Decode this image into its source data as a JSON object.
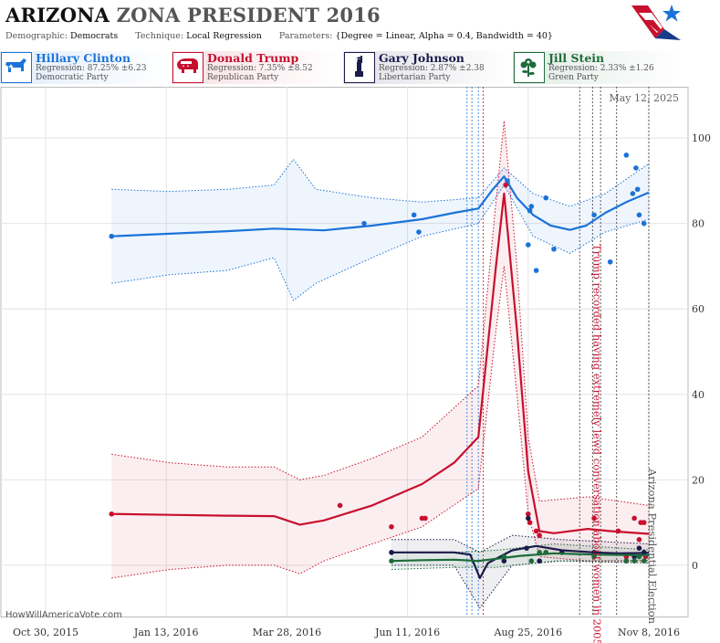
{
  "header": {
    "state": "ARIZONA",
    "title_rest": "ZONA PRESIDENT 2016",
    "demographic_label": "Demographic:",
    "demographic_value": "Democrats",
    "technique_label": "Technique:",
    "technique_value": "Local Regression",
    "parameters_label": "Parameters:",
    "parameters_value": "{Degree = Linear, Alpha = 0.4, Bandwidth = 40}"
  },
  "candidates": [
    {
      "name": "Hillary Clinton",
      "regression": "Regression: 87.25% ±6.23",
      "party": "Democratic Party",
      "color": "#1a73d9",
      "icon": "donkey-icon"
    },
    {
      "name": "Donald Trump",
      "regression": "Regression: 7.35% ±8.52",
      "party": "Republican Party",
      "color": "#c8102e",
      "icon": "elephant-icon"
    },
    {
      "name": "Gary Johnson",
      "regression": "Regression: 2.87% ±2.38",
      "party": "Libertarian Party",
      "color": "#1b1a4a",
      "icon": "statue-of-liberty-icon"
    },
    {
      "name": "Jill Stein",
      "regression": "Regression: 2.33% ±1.26",
      "party": "Green Party",
      "color": "#1e6b3a",
      "icon": "flower-icon"
    }
  ],
  "credit": "HowWillAmericaVote.com",
  "chart_data": {
    "type": "line",
    "date_stamp": "May 12, 2025",
    "x_ticks": [
      "Oct 30, 2015",
      "Jan 13, 2016",
      "Mar 28, 2016",
      "Jun 11, 2016",
      "Aug 25, 2016",
      "Nov 8, 2016"
    ],
    "x_tick_dates": [
      "2015-10-30",
      "2016-01-13",
      "2016-03-28",
      "2016-06-11",
      "2016-08-25",
      "2016-11-08"
    ],
    "x_range": [
      "2015-10-30",
      "2016-11-08"
    ],
    "y_ticks": [
      0,
      20,
      40,
      60,
      80,
      100
    ],
    "ylim": [
      -12,
      112
    ],
    "grid": true,
    "annotations": [
      {
        "date": "2016-10-07",
        "text": "Trump recorded having extremely lewd conversation about women in 2005",
        "color": "#c8102e"
      },
      {
        "date": "2016-11-08",
        "text": "Arizona Presidential Election",
        "color": "#555555"
      }
    ],
    "event_lines": {
      "blue": [
        "2016-07-18",
        "2016-07-21",
        "2016-07-25"
      ],
      "red": [
        "2016-07-28"
      ],
      "dark": [
        "2016-09-26",
        "2016-10-04",
        "2016-10-09",
        "2016-10-19",
        "2016-11-08"
      ]
    },
    "series": [
      {
        "name": "Hillary Clinton",
        "color": "#1a73d9",
        "trend": [
          [
            "2015-12-10",
            77
          ],
          [
            "2016-01-15",
            77.6
          ],
          [
            "2016-02-20",
            78.2
          ],
          [
            "2016-03-20",
            78.8
          ],
          [
            "2016-04-20",
            78.4
          ],
          [
            "2016-05-20",
            79.5
          ],
          [
            "2016-06-20",
            81
          ],
          [
            "2016-07-10",
            82.5
          ],
          [
            "2016-07-25",
            83.5
          ],
          [
            "2016-08-03",
            88
          ],
          [
            "2016-08-10",
            91
          ],
          [
            "2016-08-18",
            86
          ],
          [
            "2016-08-28",
            82
          ],
          [
            "2016-09-08",
            79.5
          ],
          [
            "2016-09-20",
            78.5
          ],
          [
            "2016-09-30",
            79.5
          ],
          [
            "2016-10-12",
            82.5
          ],
          [
            "2016-10-25",
            85
          ],
          [
            "2016-11-08",
            87.25
          ]
        ],
        "upper": [
          [
            "2015-12-10",
            88
          ],
          [
            "2016-01-15",
            87.5
          ],
          [
            "2016-02-20",
            88
          ],
          [
            "2016-03-20",
            89
          ],
          [
            "2016-04-01",
            95
          ],
          [
            "2016-04-15",
            88
          ],
          [
            "2016-05-20",
            86
          ],
          [
            "2016-06-20",
            85
          ],
          [
            "2016-07-25",
            86
          ],
          [
            "2016-08-10",
            93
          ],
          [
            "2016-08-28",
            87
          ],
          [
            "2016-09-20",
            84
          ],
          [
            "2016-10-12",
            87
          ],
          [
            "2016-11-08",
            94
          ]
        ],
        "lower": [
          [
            "2015-12-10",
            66
          ],
          [
            "2016-01-15",
            68
          ],
          [
            "2016-02-20",
            69
          ],
          [
            "2016-03-20",
            72
          ],
          [
            "2016-04-01",
            62
          ],
          [
            "2016-04-15",
            66
          ],
          [
            "2016-05-20",
            72
          ],
          [
            "2016-06-20",
            77
          ],
          [
            "2016-07-25",
            80
          ],
          [
            "2016-08-10",
            89
          ],
          [
            "2016-08-28",
            77
          ],
          [
            "2016-09-20",
            73
          ],
          [
            "2016-10-12",
            78
          ],
          [
            "2016-11-08",
            81
          ]
        ],
        "points": [
          [
            "2015-12-10",
            77
          ],
          [
            "2016-05-15",
            80
          ],
          [
            "2016-06-15",
            82
          ],
          [
            "2016-06-18",
            78
          ],
          [
            "2016-08-12",
            90
          ],
          [
            "2016-08-25",
            75
          ],
          [
            "2016-08-26",
            83
          ],
          [
            "2016-08-27",
            84
          ],
          [
            "2016-08-30",
            69
          ],
          [
            "2016-09-05",
            86
          ],
          [
            "2016-09-10",
            74
          ],
          [
            "2016-10-05",
            82
          ],
          [
            "2016-10-15",
            71
          ],
          [
            "2016-10-25",
            96
          ],
          [
            "2016-10-29",
            87
          ],
          [
            "2016-10-31",
            93
          ],
          [
            "2016-11-01",
            88
          ],
          [
            "2016-11-02",
            82
          ],
          [
            "2016-11-05",
            80
          ]
        ]
      },
      {
        "name": "Donald Trump",
        "color": "#c8102e",
        "trend": [
          [
            "2015-12-10",
            12
          ],
          [
            "2016-01-15",
            11.8
          ],
          [
            "2016-02-20",
            11.6
          ],
          [
            "2016-03-20",
            11.5
          ],
          [
            "2016-04-05",
            9.5
          ],
          [
            "2016-04-20",
            10.5
          ],
          [
            "2016-05-20",
            14
          ],
          [
            "2016-06-20",
            19
          ],
          [
            "2016-07-10",
            24
          ],
          [
            "2016-07-25",
            30
          ],
          [
            "2016-08-05",
            70
          ],
          [
            "2016-08-10",
            87
          ],
          [
            "2016-08-18",
            55
          ],
          [
            "2016-08-25",
            22
          ],
          [
            "2016-09-01",
            8
          ],
          [
            "2016-09-10",
            7.5
          ],
          [
            "2016-10-01",
            8.5
          ],
          [
            "2016-10-15",
            8
          ],
          [
            "2016-11-08",
            7.35
          ]
        ],
        "upper": [
          [
            "2015-12-10",
            26
          ],
          [
            "2016-01-15",
            24
          ],
          [
            "2016-02-20",
            23
          ],
          [
            "2016-03-20",
            23
          ],
          [
            "2016-04-05",
            20
          ],
          [
            "2016-04-20",
            21
          ],
          [
            "2016-05-20",
            25
          ],
          [
            "2016-06-20",
            30
          ],
          [
            "2016-07-25",
            42
          ],
          [
            "2016-08-05",
            85
          ],
          [
            "2016-08-10",
            104
          ],
          [
            "2016-08-18",
            70
          ],
          [
            "2016-08-25",
            30
          ],
          [
            "2016-09-01",
            15
          ],
          [
            "2016-10-01",
            16
          ],
          [
            "2016-11-08",
            14
          ]
        ],
        "lower": [
          [
            "2015-12-10",
            -3
          ],
          [
            "2016-01-15",
            -1
          ],
          [
            "2016-02-20",
            0
          ],
          [
            "2016-03-20",
            0
          ],
          [
            "2016-04-05",
            -2
          ],
          [
            "2016-04-20",
            1
          ],
          [
            "2016-05-20",
            5
          ],
          [
            "2016-06-20",
            9
          ],
          [
            "2016-07-25",
            18
          ],
          [
            "2016-08-05",
            55
          ],
          [
            "2016-08-10",
            70
          ],
          [
            "2016-08-18",
            40
          ],
          [
            "2016-08-25",
            12
          ],
          [
            "2016-09-01",
            2
          ],
          [
            "2016-10-01",
            1
          ],
          [
            "2016-11-08",
            1
          ]
        ],
        "points": [
          [
            "2015-12-10",
            12
          ],
          [
            "2016-04-30",
            14
          ],
          [
            "2016-06-01",
            9
          ],
          [
            "2016-06-20",
            11
          ],
          [
            "2016-06-22",
            11
          ],
          [
            "2016-08-11",
            89
          ],
          [
            "2016-08-25",
            12
          ],
          [
            "2016-08-26",
            10
          ],
          [
            "2016-08-30",
            8
          ],
          [
            "2016-09-01",
            7
          ],
          [
            "2016-09-05",
            3
          ],
          [
            "2016-10-05",
            11
          ],
          [
            "2016-10-20",
            8
          ],
          [
            "2016-10-25",
            2
          ],
          [
            "2016-10-30",
            11
          ],
          [
            "2016-11-02",
            6
          ],
          [
            "2016-11-03",
            10
          ],
          [
            "2016-11-05",
            10
          ],
          [
            "2016-11-06",
            2
          ]
        ]
      },
      {
        "name": "Gary Johnson",
        "color": "#1b1a4a",
        "trend": [
          [
            "2016-06-01",
            3
          ],
          [
            "2016-06-20",
            3
          ],
          [
            "2016-07-10",
            3
          ],
          [
            "2016-07-20",
            2.5
          ],
          [
            "2016-07-26",
            -3
          ],
          [
            "2016-07-31",
            0.5
          ],
          [
            "2016-08-15",
            3.5
          ],
          [
            "2016-08-30",
            4.5
          ],
          [
            "2016-09-15",
            3.5
          ],
          [
            "2016-10-05",
            3
          ],
          [
            "2016-10-20",
            2.8
          ],
          [
            "2016-11-08",
            2.87
          ]
        ],
        "upper": [
          [
            "2016-06-01",
            6
          ],
          [
            "2016-07-10",
            6
          ],
          [
            "2016-07-26",
            3
          ],
          [
            "2016-08-15",
            7
          ],
          [
            "2016-09-15",
            6
          ],
          [
            "2016-11-08",
            5
          ]
        ],
        "lower": [
          [
            "2016-06-01",
            0
          ],
          [
            "2016-07-10",
            0
          ],
          [
            "2016-07-26",
            -10
          ],
          [
            "2016-08-15",
            0
          ],
          [
            "2016-09-15",
            1
          ],
          [
            "2016-11-08",
            0.5
          ]
        ],
        "points": [
          [
            "2016-06-01",
            3
          ],
          [
            "2016-08-10",
            1
          ],
          [
            "2016-08-24",
            4
          ],
          [
            "2016-08-25",
            11
          ],
          [
            "2016-09-01",
            1
          ],
          [
            "2016-09-15",
            3
          ],
          [
            "2016-10-05",
            3
          ],
          [
            "2016-10-25",
            1
          ],
          [
            "2016-10-30",
            2
          ],
          [
            "2016-11-02",
            4
          ],
          [
            "2016-11-05",
            3
          ]
        ]
      },
      {
        "name": "Jill Stein",
        "color": "#1e6b3a",
        "trend": [
          [
            "2016-06-01",
            1
          ],
          [
            "2016-06-20",
            1.2
          ],
          [
            "2016-07-10",
            1.3
          ],
          [
            "2016-07-25",
            1
          ],
          [
            "2016-08-05",
            1.5
          ],
          [
            "2016-08-20",
            2.2
          ],
          [
            "2016-09-10",
            2.8
          ],
          [
            "2016-10-05",
            2.5
          ],
          [
            "2016-11-08",
            2.33
          ]
        ],
        "upper": [
          [
            "2016-06-01",
            3
          ],
          [
            "2016-07-10",
            3
          ],
          [
            "2016-08-05",
            3.5
          ],
          [
            "2016-09-10",
            5
          ],
          [
            "2016-11-08",
            3.6
          ]
        ],
        "lower": [
          [
            "2016-06-01",
            -1
          ],
          [
            "2016-07-10",
            -0.5
          ],
          [
            "2016-08-05",
            -0.5
          ],
          [
            "2016-09-10",
            1
          ],
          [
            "2016-11-08",
            1.1
          ]
        ],
        "points": [
          [
            "2016-06-01",
            1
          ],
          [
            "2016-08-10",
            2
          ],
          [
            "2016-08-27",
            1
          ],
          [
            "2016-09-01",
            3
          ],
          [
            "2016-09-05",
            3
          ],
          [
            "2016-10-05",
            2
          ],
          [
            "2016-10-25",
            1
          ],
          [
            "2016-10-30",
            1
          ],
          [
            "2016-11-02",
            2
          ],
          [
            "2016-11-05",
            1
          ]
        ]
      }
    ]
  }
}
